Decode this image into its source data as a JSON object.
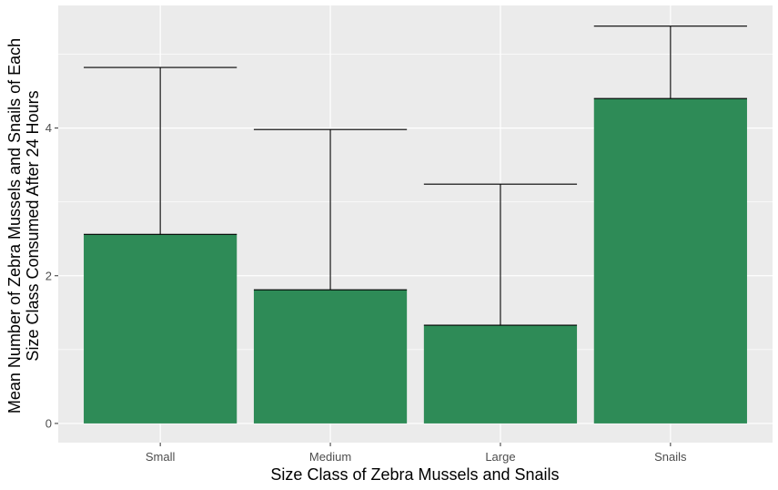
{
  "chart_data": {
    "type": "bar",
    "categories": [
      "Small",
      "Medium",
      "Large",
      "Snails"
    ],
    "values": [
      2.56,
      1.81,
      1.33,
      4.4
    ],
    "error_upper": [
      4.82,
      3.98,
      3.24,
      5.38
    ],
    "xlabel": "Size Class of Zebra Mussels and Snails",
    "ylabel_lines": [
      "Mean Number of Zebra Mussels and Snails of Each",
      "Size Class Consumed After 24 Hours"
    ],
    "yticks": [
      0,
      2,
      4
    ],
    "ylim": [
      -0.26,
      5.66
    ],
    "grid": true,
    "colors": {
      "bar": "#2e8b57",
      "panel": "#ebebeb",
      "grid": "#ffffff",
      "error_bar": "#000000"
    }
  }
}
